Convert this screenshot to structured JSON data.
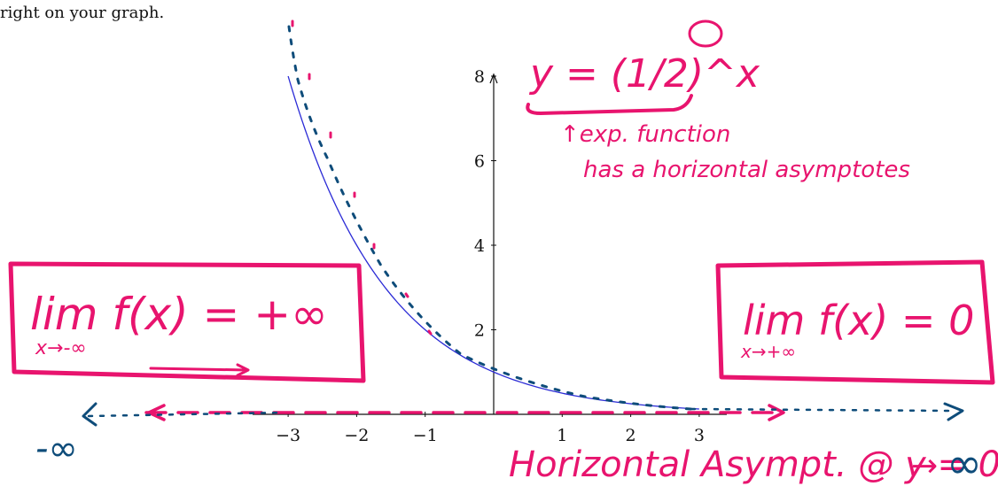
{
  "page_text": "right on your graph.",
  "chart_data": {
    "type": "line",
    "title": "",
    "xlabel": "",
    "ylabel": "",
    "xlim": [
      -3,
      3
    ],
    "ylim": [
      0,
      8
    ],
    "x_ticks": [
      {
        "value": -3,
        "label": "−3"
      },
      {
        "value": -2,
        "label": "−2"
      },
      {
        "value": -1,
        "label": "−1"
      },
      {
        "value": 1,
        "label": "1"
      },
      {
        "value": 2,
        "label": "2"
      },
      {
        "value": 3,
        "label": "3"
      }
    ],
    "y_ticks": [
      {
        "value": 2,
        "label": "2"
      },
      {
        "value": 4,
        "label": "4"
      },
      {
        "value": 6,
        "label": "6"
      },
      {
        "value": 8,
        "label": "8"
      }
    ],
    "series": [
      {
        "color": "#2b2bd6",
        "x": [
          -3,
          -2.5,
          -2,
          -1.5,
          -1,
          -0.5,
          0,
          0.5,
          1,
          1.5,
          2,
          2.5,
          3
        ],
        "y": [
          8,
          5.657,
          4,
          2.828,
          2,
          1.414,
          1,
          0.707,
          0.5,
          0.354,
          0.25,
          0.177,
          0.125
        ]
      }
    ]
  },
  "annotations": {
    "equation": "y = (1/2)^x",
    "exp_note_line1": "↑exp. function",
    "exp_note_line2": "has a horizontal asymptotes",
    "limit_left": "lim f(x) = +∞",
    "limit_left_sub": "x→-∞",
    "limit_right": "lim f(x) = 0",
    "limit_right_sub": "x→+∞",
    "asymptote_label": "Horizontal Asympt. @ y = 0",
    "neg_inf": "-∞",
    "pos_inf": "∞",
    "arrow_right": "→"
  },
  "colors": {
    "pink_ink": "#e8146e",
    "blue_ink": "#0e4c7a",
    "curve": "#2b2bd6"
  }
}
